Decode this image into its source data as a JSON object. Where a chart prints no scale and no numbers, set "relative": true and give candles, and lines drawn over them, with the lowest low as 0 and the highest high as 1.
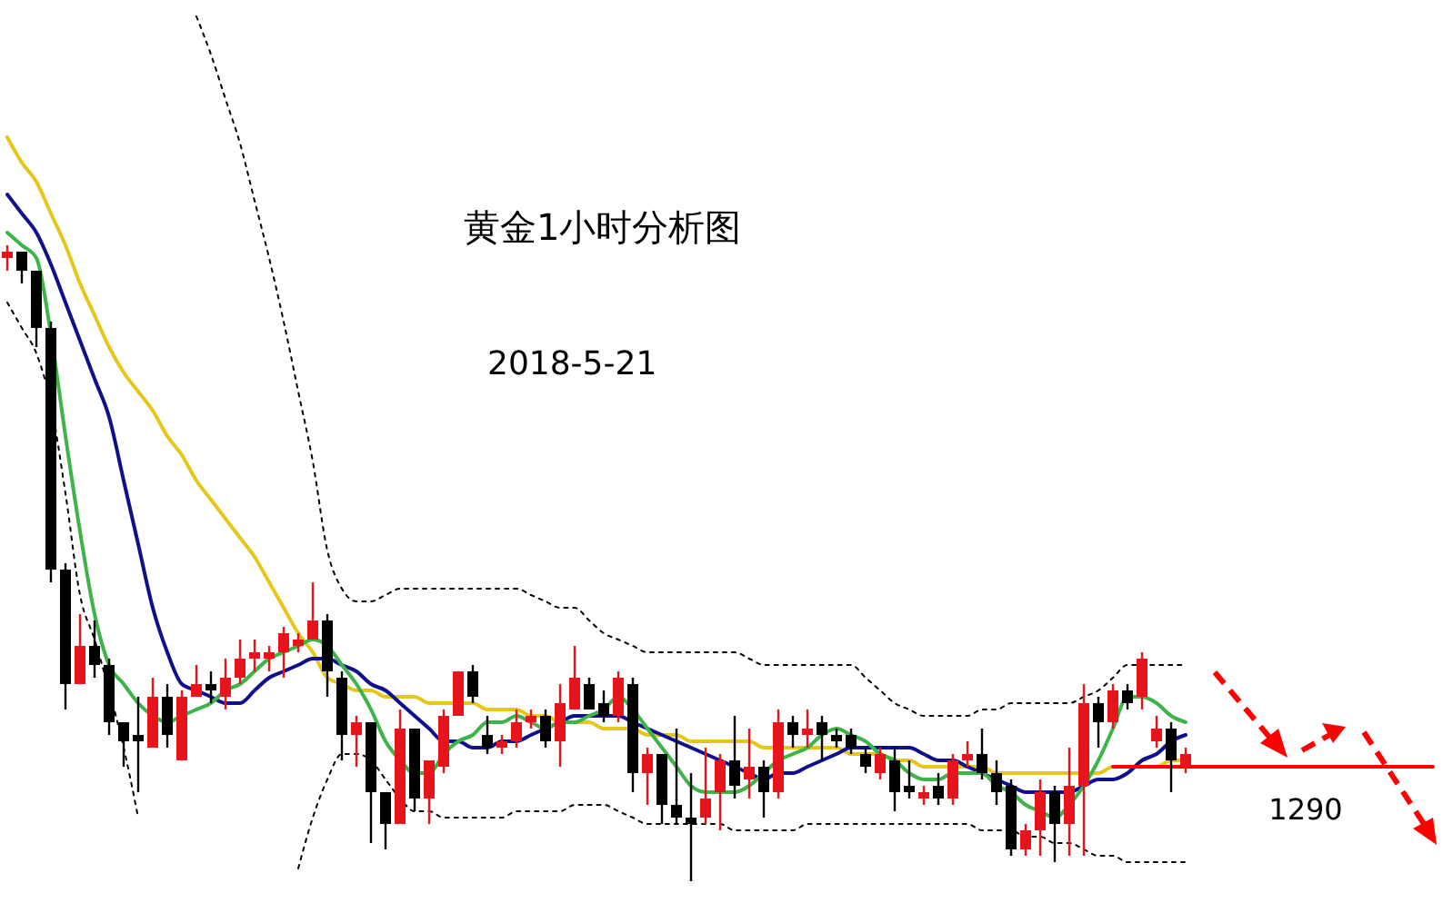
{
  "chart_data": {
    "type": "candlestick",
    "title": "黄金1小时分析图",
    "subtitle": "2018-5-21",
    "relative": true,
    "categories": [
      null,
      null,
      null,
      null,
      null,
      null,
      null,
      null,
      null,
      null,
      null,
      null,
      null,
      null,
      null,
      null,
      null,
      null,
      null,
      null,
      null,
      null,
      null,
      null,
      null,
      null,
      null,
      null,
      null,
      null,
      null,
      null,
      null,
      null,
      null,
      null,
      null,
      null,
      null,
      null,
      null,
      null,
      null,
      null,
      null,
      null,
      null,
      null,
      null,
      null,
      null,
      null,
      null,
      null,
      null,
      null,
      null,
      null,
      null,
      null,
      null,
      null,
      null,
      null,
      null,
      null,
      null,
      null,
      null,
      null,
      null,
      null,
      null,
      null,
      null,
      null,
      null,
      null,
      null,
      null,
      null,
      null,
      null,
      null,
      null,
      null,
      null,
      null,
      null,
      null,
      null,
      null,
      null,
      null,
      null,
      null,
      null,
      null,
      null
    ],
    "ohlc": [
      [
        0.98,
        1,
        0.96,
        0.99
      ],
      [
        0.99,
        0.99,
        0.94,
        0.96
      ],
      [
        0.96,
        0.96,
        0.84,
        0.87
      ],
      [
        0.87,
        0.88,
        0.47,
        0.49
      ],
      [
        0.49,
        0.5,
        0.27,
        0.31
      ],
      [
        0.31,
        0.42,
        0.31,
        0.37
      ],
      [
        0.37,
        0.41,
        0.32,
        0.34
      ],
      [
        0.34,
        0.35,
        0.23,
        0.25
      ],
      [
        0.25,
        0.25,
        0.18,
        0.22
      ],
      [
        0.23,
        0.29,
        0.14,
        0.22
      ],
      [
        0.21,
        0.32,
        0.21,
        0.29
      ],
      [
        0.29,
        0.31,
        0.21,
        0.23
      ],
      [
        0.19,
        0.3,
        0.19,
        0.29
      ],
      [
        0.29,
        0.34,
        0.29,
        0.31
      ],
      [
        0.31,
        0.33,
        0.28,
        0.3
      ],
      [
        0.29,
        0.35,
        0.27,
        0.32
      ],
      [
        0.32,
        0.38,
        0.31,
        0.35
      ],
      [
        0.35,
        0.38,
        0.33,
        0.36
      ],
      [
        0.35,
        0.37,
        0.33,
        0.36
      ],
      [
        0.36,
        0.4,
        0.32,
        0.39
      ],
      [
        0.37,
        0.39,
        0.36,
        0.38
      ],
      [
        0.38,
        0.47,
        0.38,
        0.41
      ],
      [
        0.41,
        0.42,
        0.29,
        0.33
      ],
      [
        0.32,
        0.33,
        0.19,
        0.23
      ],
      [
        0.23,
        0.26,
        0.18,
        0.25
      ],
      [
        0.25,
        0.25,
        0.06,
        0.14
      ],
      [
        0.14,
        0.14,
        0.05,
        0.09
      ],
      [
        0.09,
        0.27,
        0.09,
        0.24
      ],
      [
        0.24,
        0.24,
        0.11,
        0.13
      ],
      [
        0.13,
        0.19,
        0.09,
        0.19
      ],
      [
        0.18,
        0.27,
        0.17,
        0.26
      ],
      [
        0.26,
        0.33,
        0.26,
        0.33
      ],
      [
        0.33,
        0.34,
        0.28,
        0.29
      ],
      [
        0.23,
        0.26,
        0.2,
        0.21
      ],
      [
        0.21,
        0.23,
        0.2,
        0.22
      ],
      [
        0.22,
        0.27,
        0.21,
        0.25
      ],
      [
        0.25,
        0.27,
        0.24,
        0.26
      ],
      [
        0.26,
        0.27,
        0.21,
        0.22
      ],
      [
        0.22,
        0.31,
        0.18,
        0.28
      ],
      [
        0.27,
        0.37,
        0.27,
        0.32
      ],
      [
        0.31,
        0.32,
        0.27,
        0.27
      ],
      [
        0.28,
        0.3,
        0.25,
        0.26
      ],
      [
        0.26,
        0.33,
        0.25,
        0.32
      ],
      [
        0.31,
        0.32,
        0.14,
        0.17
      ],
      [
        0.17,
        0.21,
        0.12,
        0.2
      ],
      [
        0.2,
        0.2,
        0.09,
        0.12
      ],
      [
        0.12,
        0.24,
        0.09,
        0.1
      ],
      [
        0.1,
        0.17,
        0,
        0.09
      ],
      [
        0.1,
        0.21,
        0.09,
        0.13
      ],
      [
        0.14,
        0.2,
        0.08,
        0.19
      ],
      [
        0.19,
        0.26,
        0.13,
        0.15
      ],
      [
        0.16,
        0.24,
        0.13,
        0.18
      ],
      [
        0.18,
        0.19,
        0.1,
        0.14
      ],
      [
        0.14,
        0.27,
        0.13,
        0.25
      ],
      [
        0.25,
        0.26,
        0.21,
        0.23
      ],
      [
        0.23,
        0.27,
        0.21,
        0.24
      ],
      [
        0.25,
        0.26,
        0.19,
        0.23
      ],
      [
        0.23,
        0.24,
        0.21,
        0.22
      ],
      [
        0.23,
        0.24,
        0.2,
        0.21
      ],
      [
        0.2,
        0.21,
        0.17,
        0.18
      ],
      [
        0.17,
        0.21,
        0.16,
        0.2
      ],
      [
        0.19,
        0.21,
        0.11,
        0.14
      ],
      [
        0.15,
        0.19,
        0.13,
        0.14
      ],
      [
        0.13,
        0.15,
        0.12,
        0.14
      ],
      [
        0.15,
        0.17,
        0.12,
        0.13
      ],
      [
        0.13,
        0.2,
        0.12,
        0.19
      ],
      [
        0.19,
        0.22,
        0.18,
        0.2
      ],
      [
        0.2,
        0.24,
        0.16,
        0.17
      ],
      [
        0.17,
        0.19,
        0.12,
        0.14
      ],
      [
        0.15,
        0.16,
        0.04,
        0.05
      ],
      [
        0.05,
        0.09,
        0.04,
        0.08
      ],
      [
        0.08,
        0.16,
        0.04,
        0.14
      ],
      [
        0.14,
        0.15,
        0.03,
        0.09
      ],
      [
        0.09,
        0.21,
        0.04,
        0.15
      ],
      [
        0.15,
        0.31,
        0.04,
        0.28
      ],
      [
        0.28,
        0.29,
        0.21,
        0.25
      ],
      [
        0.25,
        0.31,
        0.24,
        0.3
      ],
      [
        0.3,
        0.31,
        0.27,
        0.28
      ],
      [
        0.29,
        0.36,
        0.27,
        0.35
      ],
      [
        0.22,
        0.26,
        0.21,
        0.24
      ],
      [
        0.24,
        0.25,
        0.14,
        0.19
      ],
      [
        0.18,
        0.21,
        0.17,
        0.2
      ],
      null,
      null,
      null,
      null,
      null,
      null,
      null,
      null,
      null,
      null,
      null,
      null,
      null,
      null,
      null,
      null,
      null
    ],
    "colors": [
      "#e8141c",
      "#000000",
      "#000000",
      "#000000",
      "#000000",
      "#e8141c",
      "#000000",
      "#000000",
      "#000000",
      "#000000",
      "#e8141c",
      "#000000",
      "#e8141c",
      "#e8141c",
      "#000000",
      "#e8141c",
      "#e8141c",
      "#e8141c",
      "#e8141c",
      "#e8141c",
      "#e8141c",
      "#e8141c",
      "#000000",
      "#000000",
      "#e8141c",
      "#000000",
      "#000000",
      "#e8141c",
      "#000000",
      "#e8141c",
      "#e8141c",
      "#e8141c",
      "#000000",
      "#000000",
      "#e8141c",
      "#e8141c",
      "#e8141c",
      "#000000",
      "#e8141c",
      "#e8141c",
      "#000000",
      "#000000",
      "#e8141c",
      "#000000",
      "#e8141c",
      "#000000",
      "#000000",
      "#000000",
      "#e8141c",
      "#e8141c",
      "#000000",
      "#e8141c",
      "#000000",
      "#e8141c",
      "#000000",
      "#e8141c",
      "#000000",
      "#000000",
      "#000000",
      "#000000",
      "#e8141c",
      "#000000",
      "#000000",
      "#e8141c",
      "#000000",
      "#e8141c",
      "#e8141c",
      "#000000",
      "#000000",
      "#000000",
      "#e8141c",
      "#e8141c",
      "#000000",
      "#e8141c",
      "#e8141c",
      "#000000",
      "#e8141c",
      "#000000",
      "#e8141c",
      "#e8141c",
      "#000000",
      "#e8141c",
      null,
      null,
      null,
      null,
      null,
      null,
      null,
      null,
      null,
      null,
      null,
      null,
      null,
      null,
      null,
      null,
      null
    ],
    "series": [
      {
        "type": "line",
        "color": "#e6c619",
        "line_style": "solid",
        "values": [
          1.17,
          1.13,
          1.1,
          1.05,
          1,
          0.94,
          0.89,
          0.84,
          0.8,
          0.77,
          0.74,
          0.7,
          0.67,
          0.63,
          0.6,
          0.57,
          0.54,
          0.51,
          0.47,
          0.43,
          0.39,
          0.36,
          0.32,
          0.31,
          0.3,
          0.3,
          0.29,
          0.29,
          0.29,
          0.28,
          0.28,
          0.28,
          0.28,
          0.27,
          0.27,
          0.27,
          0.26,
          0.26,
          0.25,
          0.25,
          0.25,
          0.24,
          0.24,
          0.24,
          0.23,
          0.23,
          0.23,
          0.22,
          0.22,
          0.22,
          0.22,
          0.22,
          0.21,
          0.21,
          0.21,
          0.21,
          0.21,
          0.21,
          0.2,
          0.2,
          0.2,
          0.19,
          0.19,
          0.18,
          0.18,
          0.18,
          0.18,
          0.18,
          0.17,
          0.17,
          0.17,
          0.17,
          0.17,
          0.17,
          0.17,
          0.17,
          0.18,
          0.18,
          0.18,
          0.18,
          0.19,
          0.19,
          null,
          null,
          null,
          null,
          null,
          null,
          null,
          null,
          null,
          null,
          null,
          null,
          null,
          null,
          null,
          null,
          null
        ]
      },
      {
        "type": "line",
        "color": "#10108c",
        "line_style": "solid",
        "values": [
          1.08,
          1.05,
          1.02,
          0.97,
          0.91,
          0.85,
          0.79,
          0.73,
          0.63,
          0.53,
          0.43,
          0.36,
          0.31,
          0.3,
          0.29,
          0.28,
          0.28,
          0.3,
          0.32,
          0.33,
          0.34,
          0.35,
          0.35,
          0.34,
          0.33,
          0.31,
          0.3,
          0.28,
          0.26,
          0.24,
          0.22,
          0.22,
          0.21,
          0.21,
          0.22,
          0.22,
          0.23,
          0.24,
          0.25,
          0.26,
          0.26,
          0.26,
          0.26,
          0.25,
          0.24,
          0.23,
          0.22,
          0.21,
          0.2,
          0.19,
          0.18,
          0.17,
          0.16,
          0.17,
          0.17,
          0.18,
          0.19,
          0.2,
          0.21,
          0.21,
          0.21,
          0.21,
          0.21,
          0.2,
          0.19,
          0.19,
          0.18,
          0.17,
          0.16,
          0.15,
          0.14,
          0.14,
          0.14,
          0.14,
          0.15,
          0.16,
          0.16,
          0.17,
          0.19,
          0.2,
          0.22,
          0.23,
          null,
          null,
          null,
          null,
          null,
          null,
          null,
          null,
          null,
          null,
          null,
          null,
          null,
          null,
          null,
          null,
          null
        ]
      },
      {
        "type": "line",
        "color": "#3cb44a",
        "line_style": "solid",
        "values": [
          1.02,
          1,
          0.98,
          0.86,
          0.7,
          0.55,
          0.42,
          0.34,
          0.31,
          0.28,
          0.26,
          0.25,
          0.26,
          0.27,
          0.28,
          0.3,
          0.31,
          0.33,
          0.35,
          0.36,
          0.37,
          0.38,
          0.37,
          0.34,
          0.31,
          0.27,
          0.22,
          0.19,
          0.17,
          0.17,
          0.2,
          0.22,
          0.23,
          0.25,
          0.25,
          0.26,
          0.25,
          0.24,
          0.25,
          0.25,
          0.26,
          0.27,
          0.29,
          0.27,
          0.24,
          0.21,
          0.18,
          0.15,
          0.14,
          0.14,
          0.14,
          0.15,
          0.17,
          0.19,
          0.2,
          0.21,
          0.23,
          0.24,
          0.23,
          0.22,
          0.2,
          0.19,
          0.17,
          0.16,
          0.16,
          0.17,
          0.17,
          0.17,
          0.15,
          0.14,
          0.12,
          0.11,
          0.1,
          0.12,
          0.15,
          0.19,
          0.24,
          0.29,
          0.29,
          0.28,
          0.26,
          0.25,
          null,
          null,
          null,
          null,
          null,
          null,
          null,
          null,
          null,
          null,
          null,
          null,
          null,
          null,
          null,
          null,
          null
        ]
      },
      {
        "type": "line",
        "color": "#000000",
        "line_style": "dotted",
        "values": [
          null,
          null,
          null,
          null,
          null,
          null,
          null,
          null,
          null,
          null,
          null,
          null,
          null,
          1.36,
          1.3,
          1.23,
          1.16,
          1.07,
          0.98,
          0.88,
          0.77,
          0.66,
          0.52,
          0.46,
          0.44,
          0.44,
          0.45,
          0.46,
          0.46,
          0.46,
          0.46,
          0.46,
          0.46,
          0.46,
          0.46,
          0.46,
          0.45,
          0.44,
          0.43,
          0.43,
          0.41,
          0.39,
          0.38,
          0.37,
          0.36,
          0.36,
          0.36,
          0.36,
          0.36,
          0.36,
          0.36,
          0.35,
          0.34,
          0.34,
          0.34,
          0.34,
          0.34,
          0.34,
          0.34,
          0.32,
          0.3,
          0.28,
          0.27,
          0.26,
          0.26,
          0.26,
          0.26,
          0.27,
          0.27,
          0.28,
          0.28,
          0.28,
          0.28,
          0.28,
          0.29,
          0.3,
          0.32,
          0.34,
          0.34,
          0.34,
          0.34,
          0.34,
          null,
          null,
          null,
          null,
          null,
          null,
          null,
          null,
          null,
          null,
          null,
          null,
          null,
          null,
          null,
          null,
          null
        ]
      },
      {
        "type": "line",
        "color": "#000000",
        "line_style": "dotted",
        "values": [
          0.91,
          0.87,
          0.83,
          0.75,
          0.61,
          0.45,
          0.38,
          0.3,
          0.21,
          0.1,
          null,
          null,
          null,
          null,
          null,
          null,
          null,
          null,
          null,
          null,
          0.02,
          0.1,
          0.16,
          0.2,
          0.2,
          0.19,
          0.16,
          0.13,
          0.11,
          0.11,
          0.1,
          0.1,
          0.1,
          0.1,
          0.1,
          0.11,
          0.11,
          0.11,
          0.11,
          0.12,
          0.12,
          0.12,
          0.11,
          0.1,
          0.09,
          0.09,
          0.09,
          0.09,
          0.09,
          0.09,
          0.08,
          0.08,
          0.08,
          0.08,
          0.08,
          0.09,
          0.09,
          0.09,
          0.09,
          0.09,
          0.09,
          0.09,
          0.09,
          0.09,
          0.09,
          0.09,
          0.09,
          0.08,
          0.08,
          0.08,
          0.07,
          0.07,
          0.06,
          0.06,
          0.05,
          0.04,
          0.04,
          0.03,
          0.03,
          0.03,
          0.03,
          0.03,
          null,
          null,
          null,
          null,
          null,
          null,
          null,
          null,
          null,
          null,
          null,
          null,
          null,
          null,
          null,
          null,
          null
        ]
      },
      {
        "type": "line",
        "color": "#ff0000",
        "line_style": "solid",
        "values": [
          null,
          null,
          null,
          null,
          null,
          null,
          null,
          null,
          null,
          null,
          null,
          null,
          null,
          null,
          null,
          null,
          null,
          null,
          null,
          null,
          null,
          null,
          null,
          null,
          null,
          null,
          null,
          null,
          null,
          null,
          null,
          null,
          null,
          null,
          null,
          null,
          null,
          null,
          null,
          null,
          null,
          null,
          null,
          null,
          null,
          null,
          null,
          null,
          null,
          null,
          null,
          null,
          null,
          null,
          null,
          null,
          null,
          null,
          null,
          null,
          null,
          null,
          null,
          null,
          null,
          null,
          null,
          null,
          null,
          null,
          null,
          null,
          null,
          null,
          null,
          null,
          0.18,
          0.18,
          0.18,
          0.18,
          0.18,
          0.18,
          0.18,
          0.18,
          0.18,
          0.18,
          0.18,
          0.18,
          0.18,
          0.18,
          0.18,
          0.18,
          0.18,
          0.18,
          0.18,
          0.18,
          0.18,
          0.18,
          0.18
        ]
      }
    ],
    "annotations": [
      "1290"
    ]
  }
}
